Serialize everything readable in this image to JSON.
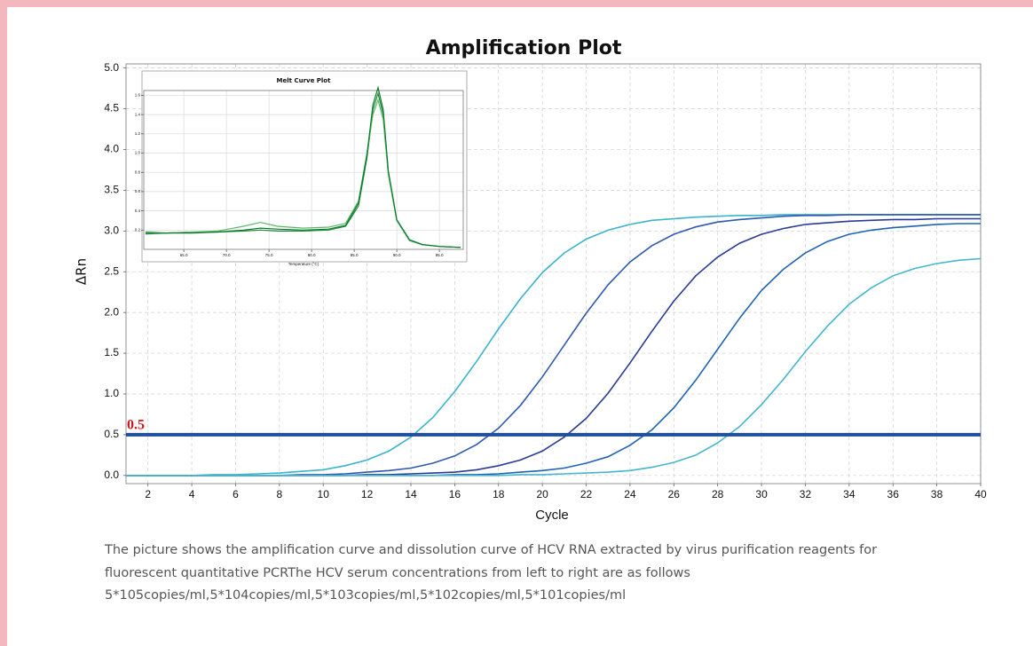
{
  "chart_data": [
    {
      "type": "line",
      "title": "Amplification Plot",
      "xlabel": "Cycle",
      "ylabel": "ΔRn",
      "x": [
        1,
        2,
        3,
        4,
        5,
        6,
        7,
        8,
        9,
        10,
        11,
        12,
        13,
        14,
        15,
        16,
        17,
        18,
        19,
        20,
        21,
        22,
        23,
        24,
        25,
        26,
        27,
        28,
        29,
        30,
        31,
        32,
        33,
        34,
        35,
        36,
        37,
        38,
        39,
        40
      ],
      "series": [
        {
          "color": "#3ab3cc",
          "values": [
            0,
            0,
            0,
            0,
            0.01,
            0.01,
            0.02,
            0.03,
            0.05,
            0.07,
            0.12,
            0.19,
            0.3,
            0.47,
            0.71,
            1.03,
            1.4,
            1.8,
            2.17,
            2.49,
            2.73,
            2.9,
            3.01,
            3.08,
            3.13,
            3.15,
            3.17,
            3.18,
            3.19,
            3.19,
            3.2,
            3.2,
            3.2,
            3.2,
            3.2,
            3.2,
            3.2,
            3.2,
            3.2,
            3.2
          ]
        },
        {
          "color": "#2f59b0",
          "values": [
            0,
            0,
            0,
            0,
            0,
            0,
            0,
            0,
            0.01,
            0.01,
            0.02,
            0.04,
            0.06,
            0.09,
            0.15,
            0.24,
            0.38,
            0.58,
            0.86,
            1.21,
            1.6,
            1.99,
            2.34,
            2.62,
            2.82,
            2.96,
            3.05,
            3.11,
            3.14,
            3.16,
            3.18,
            3.19,
            3.19,
            3.2,
            3.2,
            3.2,
            3.2,
            3.2,
            3.2,
            3.2
          ]
        },
        {
          "color": "#2a3a96",
          "values": [
            0,
            0,
            0,
            0,
            0,
            0,
            0,
            0,
            0,
            0,
            0,
            0.01,
            0.01,
            0.02,
            0.03,
            0.04,
            0.07,
            0.12,
            0.19,
            0.3,
            0.47,
            0.7,
            1.01,
            1.38,
            1.77,
            2.14,
            2.45,
            2.68,
            2.85,
            2.96,
            3.03,
            3.08,
            3.1,
            3.12,
            3.13,
            3.14,
            3.14,
            3.15,
            3.15,
            3.15
          ]
        },
        {
          "color": "#1f63b3",
          "values": [
            0,
            0,
            0,
            0,
            0,
            0,
            0,
            0,
            0,
            0,
            0,
            0,
            0,
            0,
            0,
            0.01,
            0.01,
            0.02,
            0.04,
            0.06,
            0.09,
            0.15,
            0.23,
            0.37,
            0.56,
            0.83,
            1.17,
            1.55,
            1.93,
            2.27,
            2.53,
            2.73,
            2.87,
            2.96,
            3.01,
            3.04,
            3.06,
            3.08,
            3.09,
            3.09
          ]
        },
        {
          "color": "#45b6cf",
          "values": [
            0,
            0,
            0,
            0,
            0,
            0,
            0,
            0,
            0,
            0,
            0,
            0,
            0,
            0,
            0,
            0,
            0,
            0,
            0.01,
            0.01,
            0.02,
            0.03,
            0.04,
            0.06,
            0.1,
            0.16,
            0.25,
            0.4,
            0.6,
            0.87,
            1.18,
            1.52,
            1.83,
            2.1,
            2.3,
            2.45,
            2.54,
            2.6,
            2.64,
            2.66
          ]
        }
      ],
      "threshold": 0.5,
      "threshold_color": "#1f4e9a",
      "xlim": [
        1,
        40
      ],
      "xticks": [
        2,
        4,
        6,
        8,
        10,
        12,
        14,
        16,
        18,
        20,
        22,
        24,
        26,
        28,
        30,
        32,
        34,
        36,
        38,
        40
      ],
      "ylim": [
        -0.1,
        5.05
      ],
      "yticks": [
        {
          "value": 0,
          "label": "0.0"
        },
        0.5,
        {
          "value": 1,
          "label": "1.0"
        },
        1.5,
        {
          "value": 2,
          "label": "2.0"
        },
        2.5,
        {
          "value": 3,
          "label": "3.0"
        },
        3.5,
        {
          "value": 4,
          "label": "4.0"
        },
        4.5,
        {
          "value": 5,
          "label": "5.0"
        }
      ],
      "grid": true
    },
    {
      "type": "line",
      "title": "Melt Curve Plot",
      "xlabel": "Temperature (°C)",
      "x": [
        60.5,
        63,
        66,
        69,
        72,
        74,
        76,
        79,
        82,
        84,
        85.5,
        86.5,
        87.2,
        87.8,
        88.4,
        89,
        90,
        91.5,
        93,
        95,
        97.5
      ],
      "series": [
        {
          "color": "#1f8f3a",
          "values": [
            0.18,
            0.17,
            0.18,
            0.18,
            0.19,
            0.2,
            0.19,
            0.19,
            0.2,
            0.24,
            0.45,
            0.95,
            1.45,
            1.62,
            1.4,
            0.8,
            0.3,
            0.09,
            0.05,
            0.03,
            0.02
          ]
        },
        {
          "color": "#5bb86a",
          "values": [
            0.17,
            0.17,
            0.18,
            0.19,
            0.24,
            0.28,
            0.24,
            0.22,
            0.23,
            0.27,
            0.5,
            1.0,
            1.4,
            1.55,
            1.35,
            0.78,
            0.3,
            0.09,
            0.05,
            0.03,
            0.02
          ]
        },
        {
          "color": "#0c7a2e",
          "values": [
            0.16,
            0.17,
            0.17,
            0.18,
            0.2,
            0.22,
            0.21,
            0.2,
            0.21,
            0.25,
            0.48,
            0.98,
            1.5,
            1.68,
            1.45,
            0.82,
            0.31,
            0.1,
            0.05,
            0.03,
            0.02
          ]
        }
      ],
      "xlim": [
        60.3,
        97.8
      ],
      "xticks": [
        {
          "value": 65,
          "label": "65.0"
        },
        {
          "value": 70,
          "label": "70.0"
        },
        {
          "value": 75,
          "label": "75.0"
        },
        {
          "value": 80,
          "label": "80.0"
        },
        {
          "value": 85,
          "label": "85.0"
        },
        {
          "value": 90,
          "label": "90.0"
        },
        {
          "value": 95,
          "label": "95.0"
        }
      ],
      "ylim": [
        0,
        1.65
      ],
      "yticks": [
        0.2,
        0.4,
        0.6,
        0.8,
        {
          "value": 1,
          "label": "1.0"
        },
        1.2,
        1.4,
        1.6
      ],
      "grid": true
    }
  ],
  "caption": [
    "The picture shows the amplification curve and dissolution curve of HCV RNA extracted by virus purification reagents for",
    "fluorescent quantitative PCRThe HCV serum concentrations from left to right are as follows",
    "5*105copies/ml,5*104copies/ml,5*103copies/ml,5*102copies/ml,5*101copies/ml"
  ]
}
